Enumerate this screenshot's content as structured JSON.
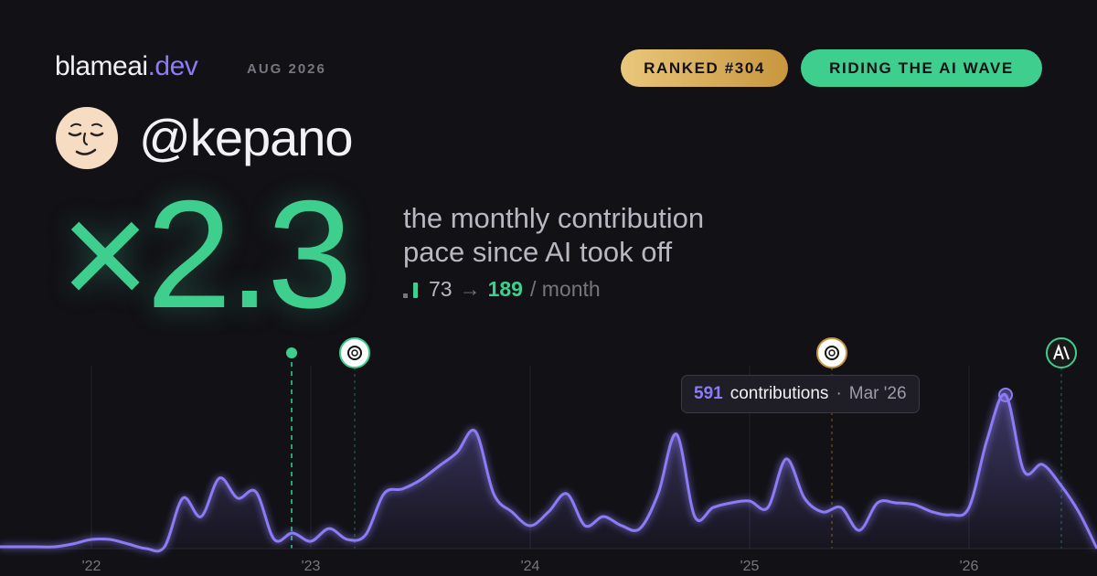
{
  "header": {
    "brand": "blameai",
    "tld": ".dev",
    "date": "AUG 2026",
    "badges": [
      "RANKED #304",
      "RIDING THE AI WAVE"
    ]
  },
  "user": "@kepano",
  "multiplier": "×2.3",
  "description": [
    "the monthly contribution",
    "pace since AI took off"
  ],
  "stats": {
    "from": "73",
    "arrow": "→",
    "to": "189",
    "unit": "/ month"
  },
  "tooltip": {
    "label": "contributions",
    "separator": "·",
    "date": "Mar '26"
  },
  "chart_data": {
    "type": "area",
    "color": "#8b7cf6",
    "categories": [
      null,
      null,
      null,
      null,
      null,
      "'22",
      null,
      null,
      null,
      null,
      null,
      null,
      null,
      null,
      null,
      null,
      null,
      "'23",
      null,
      null,
      null,
      null,
      null,
      null,
      null,
      null,
      null,
      null,
      null,
      "'24",
      null,
      null,
      null,
      null,
      null,
      null,
      null,
      null,
      null,
      null,
      null,
      "'25",
      null,
      null,
      null,
      null,
      null,
      null,
      null,
      null,
      null,
      null,
      null,
      "'26",
      null,
      null,
      null,
      null,
      null,
      null,
      null
    ],
    "values": [
      7,
      7,
      7,
      7,
      18,
      35,
      35,
      18,
      0,
      7,
      194,
      123,
      271,
      194,
      218,
      35,
      60,
      28,
      77,
      35,
      53,
      211,
      229,
      264,
      317,
      370,
      451,
      211,
      141,
      88,
      141,
      211,
      88,
      123,
      88,
      77,
      211,
      440,
      123,
      158,
      176,
      183,
      158,
      345,
      194,
      141,
      158,
      70,
      176,
      176,
      169,
      141,
      130,
      158,
      422,
      591,
      299,
      324,
      246,
      141,
      0
    ]
  }
}
